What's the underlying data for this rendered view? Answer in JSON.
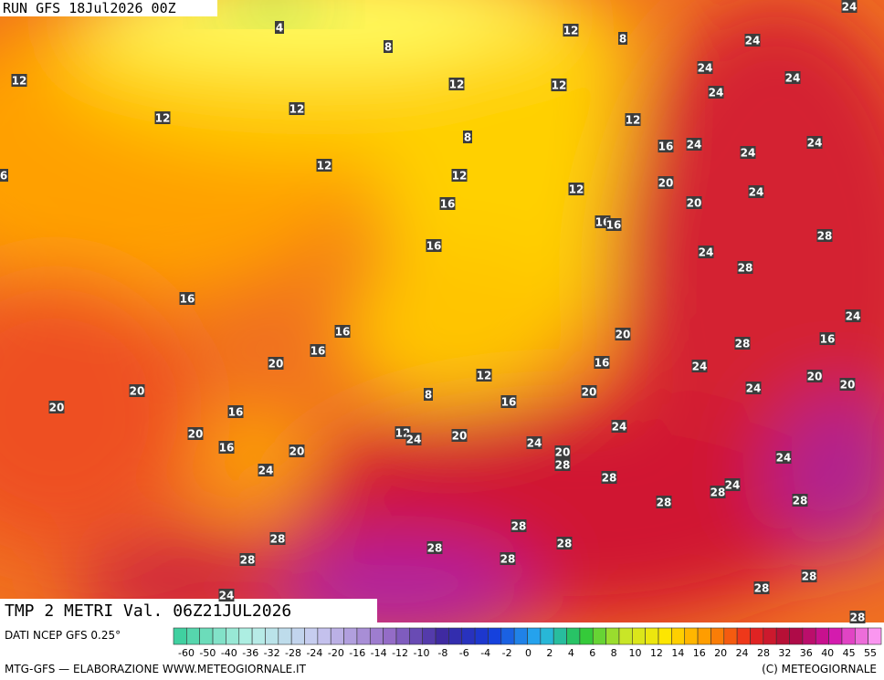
{
  "header": {
    "run": "RUN GFS 18Jul2026 00Z",
    "field": "TMP 2 METRI Val. 06Z21JUL2026"
  },
  "contour_labels": [
    12,
    4,
    8,
    12,
    8,
    24,
    24,
    24,
    24,
    24,
    12,
    12,
    12,
    12,
    12,
    8,
    16,
    24,
    24,
    24,
    12,
    12,
    20,
    12,
    24,
    16,
    20,
    16,
    16,
    16,
    24,
    28,
    28,
    16,
    16,
    16,
    20,
    24,
    16,
    28,
    20,
    16,
    24,
    12,
    20,
    20,
    8,
    16,
    20,
    24,
    20,
    20,
    16,
    24,
    20,
    12,
    24,
    20,
    16,
    20,
    24,
    20,
    28,
    24,
    24,
    28,
    24,
    28,
    28,
    28,
    28,
    28,
    28,
    28,
    28,
    28,
    28,
    28,
    24,
    28,
    6
  ],
  "colorbar": {
    "labels": [
      -60,
      -50,
      -40,
      -36,
      -32,
      -28,
      -24,
      -20,
      -16,
      -14,
      -12,
      -10,
      -8,
      -6,
      -4,
      -2,
      0,
      2,
      4,
      6,
      8,
      10,
      12,
      14,
      16,
      20,
      24,
      28,
      32,
      36,
      40,
      45,
      55
    ]
  },
  "footer": {
    "source": "DATI NCEP GFS 0.25°",
    "credit": "MTG-GFS — ELABORAZIONE WWW.METEOGIORNALE.IT",
    "copyright": "(C) METEOGIORNALE"
  }
}
